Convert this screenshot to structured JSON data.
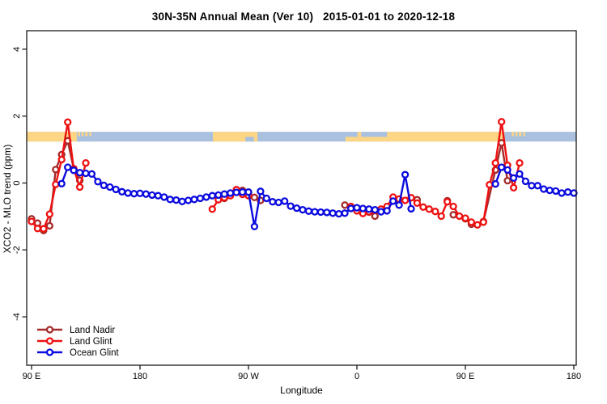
{
  "title": "30N-35N Annual Mean (Ver 10)   2015-01-01 to 2020-12-18",
  "chart_data": {
    "type": "line",
    "title": "30N-35N Annual Mean (Ver 10)   2015-01-01 to 2020-12-18",
    "xlabel": "Longitude",
    "ylabel": "XCO2 - MLO trend (ppm)",
    "x_axis": {
      "note": "longitude axis wraps: 90E eastward through 180, 90W, 0, 90E to 180 again; internal coord t runs 90..540 degrees",
      "ticks_t": [
        90,
        180,
        270,
        360,
        450,
        540
      ],
      "tick_labels": [
        "90 E",
        "180",
        "90 W",
        "0",
        "90 E",
        "180"
      ],
      "range_t": [
        86,
        542
      ]
    },
    "y_axis": {
      "ticks": [
        4,
        2,
        0,
        -2,
        -4
      ],
      "tick_labels": [
        "4",
        "2",
        "0",
        "-2",
        "-4"
      ],
      "range": [
        -5.45,
        4.55
      ],
      "grid": false
    },
    "legend_position": "bottom-left-inside",
    "series": [
      {
        "name": "Land Nadir",
        "color": "#a52a2a",
        "marker": "open-circle",
        "segments": [
          [
            [
              90,
              -1.07
            ],
            [
              95,
              -1.2
            ],
            [
              100,
              -1.42
            ],
            [
              105,
              -1.28
            ],
            [
              110,
              0.4
            ],
            [
              115,
              0.85
            ],
            [
              120,
              1.26
            ],
            [
              125,
              0.43
            ],
            [
              130,
              0.08
            ]
          ],
          [
            [
              250,
              -0.46
            ],
            [
              255,
              -0.31
            ],
            [
              260,
              -0.2
            ],
            [
              265,
              -0.22
            ],
            [
              270,
              -0.31
            ],
            [
              275,
              -0.43
            ],
            [
              280,
              -0.52
            ]
          ],
          [
            [
              350,
              -0.66
            ],
            [
              355,
              -0.71
            ]
          ],
          [
            [
              370,
              -0.87
            ],
            [
              375,
              -0.99
            ]
          ],
          [
            [
              410,
              -0.5
            ]
          ],
          [
            [
              435,
              -0.53
            ]
          ],
          [
            [
              440,
              -0.95
            ]
          ],
          [
            [
              450,
              -1.07
            ],
            [
              455,
              -1.23
            ]
          ],
          [
            [
              465,
              -1.15
            ],
            [
              475,
              0.39
            ],
            [
              480,
              1.2
            ],
            [
              485,
              0.07
            ]
          ]
        ]
      },
      {
        "name": "Land Glint",
        "color": "#ee1111",
        "marker": "open-circle",
        "segments": [
          [
            [
              90,
              -1.15
            ],
            [
              95,
              -1.36
            ],
            [
              100,
              -1.37
            ],
            [
              105,
              -0.93
            ],
            [
              110,
              -0.04
            ],
            [
              115,
              0.7
            ],
            [
              120,
              1.82
            ],
            [
              125,
              0.42
            ],
            [
              130,
              -0.12
            ],
            [
              135,
              0.6
            ]
          ],
          [
            [
              240,
              -0.78
            ],
            [
              245,
              -0.5
            ],
            [
              250,
              -0.44
            ],
            [
              255,
              -0.38
            ],
            [
              260,
              -0.2
            ],
            [
              265,
              -0.34
            ],
            [
              270,
              -0.38
            ]
          ],
          [
            [
              355,
              -0.7
            ],
            [
              360,
              -0.83
            ],
            [
              365,
              -0.91
            ],
            [
              370,
              -0.86
            ],
            [
              375,
              -0.82
            ],
            [
              380,
              -0.78
            ],
            [
              385,
              -0.7
            ],
            [
              390,
              -0.42
            ],
            [
              395,
              -0.48
            ],
            [
              400,
              -0.52
            ],
            [
              405,
              -0.44
            ],
            [
              410,
              -0.6
            ],
            [
              415,
              -0.72
            ],
            [
              420,
              -0.78
            ],
            [
              425,
              -0.85
            ],
            [
              430,
              -0.99
            ],
            [
              435,
              -0.56
            ],
            [
              440,
              -0.7
            ],
            [
              445,
              -0.99
            ],
            [
              450,
              -1.05
            ],
            [
              455,
              -1.17
            ],
            [
              460,
              -1.25
            ],
            [
              465,
              -1.17
            ],
            [
              470,
              -0.05
            ],
            [
              475,
              0.6
            ],
            [
              480,
              1.83
            ],
            [
              485,
              0.53
            ],
            [
              490,
              -0.14
            ],
            [
              495,
              0.6
            ]
          ]
        ]
      },
      {
        "name": "Ocean Glint",
        "color": "#0b0bdf",
        "marker": "open-circle",
        "segments": [
          [
            [
              115,
              -0.02
            ],
            [
              120,
              0.47
            ],
            [
              125,
              0.38
            ],
            [
              130,
              0.31
            ],
            [
              135,
              0.29
            ],
            [
              140,
              0.27
            ],
            [
              145,
              0.04
            ],
            [
              150,
              -0.07
            ],
            [
              155,
              -0.12
            ],
            [
              160,
              -0.19
            ],
            [
              165,
              -0.26
            ],
            [
              170,
              -0.3
            ],
            [
              175,
              -0.32
            ],
            [
              180,
              -0.31
            ],
            [
              185,
              -0.33
            ],
            [
              190,
              -0.36
            ],
            [
              195,
              -0.38
            ],
            [
              200,
              -0.42
            ],
            [
              205,
              -0.49
            ],
            [
              210,
              -0.51
            ],
            [
              215,
              -0.55
            ],
            [
              220,
              -0.52
            ],
            [
              225,
              -0.49
            ],
            [
              230,
              -0.46
            ],
            [
              235,
              -0.42
            ],
            [
              240,
              -0.38
            ],
            [
              245,
              -0.36
            ],
            [
              250,
              -0.33
            ],
            [
              255,
              -0.3
            ],
            [
              260,
              -0.28
            ],
            [
              265,
              -0.27
            ],
            [
              270,
              -0.27
            ],
            [
              275,
              -1.3
            ],
            [
              280,
              -0.25
            ],
            [
              285,
              -0.46
            ],
            [
              290,
              -0.56
            ],
            [
              295,
              -0.58
            ],
            [
              300,
              -0.54
            ],
            [
              305,
              -0.69
            ],
            [
              310,
              -0.75
            ],
            [
              315,
              -0.8
            ],
            [
              320,
              -0.84
            ],
            [
              325,
              -0.86
            ],
            [
              330,
              -0.87
            ],
            [
              335,
              -0.88
            ],
            [
              340,
              -0.9
            ],
            [
              345,
              -0.92
            ],
            [
              350,
              -0.9
            ],
            [
              355,
              -0.76
            ],
            [
              360,
              -0.74
            ],
            [
              365,
              -0.76
            ],
            [
              370,
              -0.78
            ],
            [
              375,
              -0.8
            ],
            [
              380,
              -0.86
            ],
            [
              385,
              -0.83
            ],
            [
              390,
              -0.54
            ],
            [
              395,
              -0.66
            ],
            [
              400,
              0.25
            ],
            [
              405,
              -0.77
            ]
          ],
          [
            [
              475,
              -0.03
            ],
            [
              480,
              0.47
            ],
            [
              485,
              0.39
            ],
            [
              490,
              0.15
            ],
            [
              495,
              0.27
            ],
            [
              500,
              0.05
            ],
            [
              505,
              -0.08
            ],
            [
              510,
              -0.08
            ],
            [
              515,
              -0.18
            ],
            [
              520,
              -0.22
            ],
            [
              525,
              -0.24
            ],
            [
              530,
              -0.3
            ],
            [
              535,
              -0.27
            ],
            [
              540,
              -0.3
            ]
          ]
        ]
      }
    ],
    "map_band": {
      "note": "strip showing land/ocean mask of the 30N-35N latitude band along the longitude axis",
      "ppm_top": 1.53,
      "ppm_bottom": 1.24,
      "ocean_color": "#a9c0de",
      "land_color": "#fdd685",
      "land_segments": [
        {
          "region": "asia",
          "from": 86,
          "to": 127.5,
          "part": "full"
        },
        {
          "region": "japan-islands",
          "from": 128.5,
          "to": 130.2,
          "part": "top"
        },
        {
          "region": "japan-islands",
          "from": 131.5,
          "to": 133.2,
          "part": "top"
        },
        {
          "region": "japan-islands",
          "from": 134.5,
          "to": 136.5,
          "part": "top"
        },
        {
          "region": "japan-islands",
          "from": 138.0,
          "to": 139.5,
          "part": "top"
        },
        {
          "region": "north-america",
          "from": 240.5,
          "to": 277.5,
          "part": "full"
        },
        {
          "region": "north-africa-mediterranean",
          "from": 350.5,
          "to": 385,
          "part": "bottom"
        },
        {
          "region": "tunisia",
          "from": 360.5,
          "to": 363.5,
          "part": "full"
        },
        {
          "region": "middle-east-asia",
          "from": 385,
          "to": 482.5,
          "part": "full"
        },
        {
          "region": "japan-islands",
          "from": 488.5,
          "to": 490.2,
          "part": "top"
        },
        {
          "region": "japan-islands",
          "from": 491.5,
          "to": 493.2,
          "part": "top"
        },
        {
          "region": "japan-islands",
          "from": 494.5,
          "to": 496.5,
          "part": "top"
        },
        {
          "region": "japan-islands",
          "from": 498.0,
          "to": 499.5,
          "part": "top"
        }
      ],
      "ocean_notches": [
        {
          "region": "gulf-of-mexico",
          "from": 267.5,
          "to": 274.5,
          "part": "bottom"
        }
      ]
    }
  },
  "legend": {
    "items": [
      {
        "label": "Land Nadir",
        "color": "#a52a2a"
      },
      {
        "label": "Land Glint",
        "color": "#ee1111"
      },
      {
        "label": "Ocean Glint",
        "color": "#0b0bdf"
      }
    ]
  }
}
